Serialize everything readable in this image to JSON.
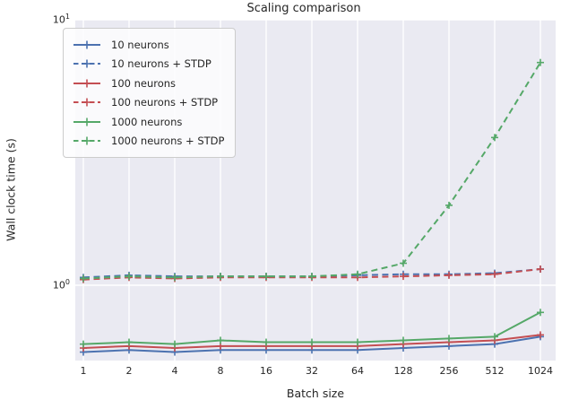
{
  "figure": {
    "title": "Scaling comparison",
    "xlabel": "Batch size",
    "ylabel": "Wall clock time (s)"
  },
  "axes": {
    "x_tick_labels": [
      "1",
      "2",
      "4",
      "8",
      "16",
      "32",
      "64",
      "128",
      "256",
      "512",
      "1024"
    ],
    "y_ticks": [
      {
        "base": "10",
        "exp": "1",
        "value": 10
      },
      {
        "base": "10",
        "exp": "0",
        "value": 1
      }
    ],
    "grid": "on",
    "plot_bg_color": "#EAEAF2",
    "grid_color": "#FFFFFF",
    "text_color": "#262626"
  },
  "chart_data": {
    "type": "line",
    "title": "Scaling comparison",
    "xlabel": "Batch size",
    "ylabel": "Wall clock time (s)",
    "x_scale": "log2-category",
    "y_scale": "log10",
    "ylim": [
      0.52,
      10
    ],
    "categories": [
      1,
      2,
      4,
      8,
      16,
      32,
      64,
      128,
      256,
      512,
      1024
    ],
    "legend_position": "upper left",
    "marker": "+",
    "series": [
      {
        "name": "10 neurons",
        "color": "#4C72B0",
        "dash": "solid",
        "values": [
          0.56,
          0.57,
          0.56,
          0.57,
          0.57,
          0.57,
          0.57,
          0.58,
          0.59,
          0.6,
          0.64
        ]
      },
      {
        "name": "10 neurons + STDP",
        "color": "#4C72B0",
        "dash": "dashed",
        "values": [
          1.07,
          1.09,
          1.08,
          1.08,
          1.08,
          1.08,
          1.09,
          1.1,
          1.1,
          1.11,
          1.15
        ]
      },
      {
        "name": "100 neurons",
        "color": "#C44E52",
        "dash": "solid",
        "values": [
          0.58,
          0.59,
          0.58,
          0.59,
          0.59,
          0.59,
          0.59,
          0.6,
          0.61,
          0.62,
          0.65
        ]
      },
      {
        "name": "100 neurons + STDP",
        "color": "#C44E52",
        "dash": "dashed",
        "values": [
          1.05,
          1.07,
          1.06,
          1.07,
          1.07,
          1.07,
          1.07,
          1.08,
          1.09,
          1.1,
          1.15
        ]
      },
      {
        "name": "1000 neurons",
        "color": "#55A868",
        "dash": "solid",
        "values": [
          0.6,
          0.61,
          0.6,
          0.62,
          0.61,
          0.61,
          0.61,
          0.62,
          0.63,
          0.64,
          0.79
        ]
      },
      {
        "name": "1000 neurons + STDP",
        "color": "#55A868",
        "dash": "dashed",
        "values": [
          1.06,
          1.08,
          1.07,
          1.08,
          1.08,
          1.08,
          1.1,
          1.21,
          2.0,
          3.6,
          6.9
        ]
      }
    ]
  }
}
